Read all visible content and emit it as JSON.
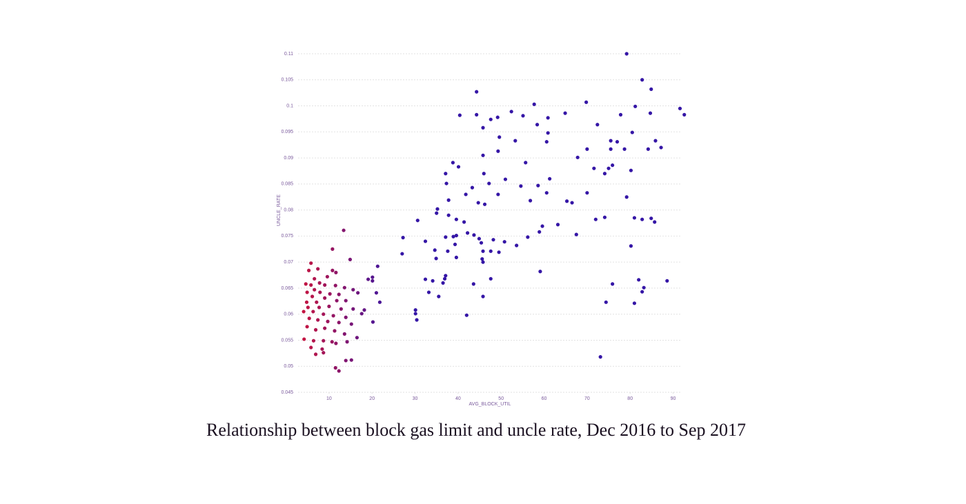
{
  "chart_data": {
    "type": "scatter",
    "caption": "Relationship between block gas limit and uncle rate, Dec 2016 to Sep 2017",
    "xlabel": "AVG_BLOCK_UTIL",
    "ylabel": "UNCLE_RATE",
    "xlim": [
      2.8,
      92
    ],
    "ylim": [
      0.045,
      0.11
    ],
    "xticks": [
      10,
      20,
      30,
      40,
      50,
      60,
      70,
      80,
      90
    ],
    "yticks": [
      0.045,
      0.05,
      0.055,
      0.06,
      0.065,
      0.07,
      0.075,
      0.08,
      0.085,
      0.09,
      0.095,
      0.1,
      0.105,
      0.11
    ],
    "grid": true,
    "colors": [
      "#cc153c",
      "#3516a6"
    ],
    "x": [
      79.2,
      82.8,
      84.9,
      44.3,
      57.7,
      69.8,
      81.2,
      91.6,
      92.6,
      40.4,
      44.3,
      49.2,
      52.4,
      55.1,
      64.9,
      60.9,
      47.6,
      84.7,
      77.8,
      45.8,
      58.4,
      72.4,
      80.5,
      60.9,
      49.6,
      53.3,
      60.6,
      75.5,
      77.0,
      85.9,
      70.0,
      49.3,
      78.7,
      84.2,
      87.2,
      45.8,
      67.8,
      75.5,
      38.8,
      55.7,
      40.1,
      71.6,
      75.9,
      75.0,
      80.2,
      37.1,
      74.1,
      46.0,
      51.0,
      61.3,
      47.2,
      54.6,
      58.6,
      37.3,
      43.3,
      49.3,
      41.8,
      60.6,
      70.0,
      79.2,
      44.7,
      46.2,
      56.8,
      65.3,
      66.5,
      37.8,
      35.2,
      37.8,
      35.0,
      39.6,
      41.4,
      30.6,
      72.0,
      74.1,
      81.0,
      82.8,
      84.9,
      85.7,
      59.6,
      63.2,
      58.9,
      67.5,
      37.1,
      38.9,
      39.6,
      42.2,
      43.7,
      44.9,
      48.2,
      56.2,
      27.2,
      32.4,
      50.8,
      45.4,
      39.3,
      53.6,
      80.2,
      34.6,
      37.6,
      27.0,
      45.8,
      47.6,
      49.5,
      34.9,
      45.6,
      39.6,
      45.8,
      59.1,
      37.1,
      32.4,
      34.1,
      36.9,
      47.6,
      36.5,
      43.6,
      75.9,
      82.0,
      88.6,
      83.2,
      82.8,
      33.2,
      35.5,
      45.8,
      74.4,
      81.0,
      30.1,
      30.1,
      42.0,
      30.4,
      73.1,
      13.4,
      10.8,
      14.9,
      21.3,
      5.8,
      7.4,
      10.8,
      11.6,
      5.3,
      9.6,
      6.6,
      19.1,
      20.1,
      20.1,
      4.6,
      5.8,
      7.8,
      9.0,
      11.5,
      13.6,
      15.6,
      6.6,
      4.9,
      7.9,
      10.2,
      12.3,
      16.7,
      21.0,
      21.8,
      6.1,
      9.0,
      11.8,
      13.9,
      4.8,
      7.1,
      5.1,
      7.7,
      10.0,
      12.8,
      15.6,
      18.2,
      6.3,
      4.1,
      8.7,
      11.0,
      13.9,
      17.6,
      20.2,
      5.4,
      7.4,
      9.7,
      12.3,
      15.2,
      4.9,
      6.9,
      9.0,
      11.3,
      13.6,
      16.5,
      4.2,
      6.4,
      8.7,
      10.7,
      14.2,
      5.8,
      8.4,
      11.6,
      6.9,
      8.7,
      13.9,
      15.2,
      11.5,
      12.3
    ],
    "values": [
      0.11,
      0.105,
      0.1032,
      0.1027,
      0.1003,
      0.1007,
      0.0999,
      0.0995,
      0.0983,
      0.0982,
      0.0983,
      0.0978,
      0.0989,
      0.0981,
      0.0986,
      0.0977,
      0.0974,
      0.0986,
      0.0983,
      0.0958,
      0.0964,
      0.0964,
      0.0949,
      0.0948,
      0.094,
      0.0933,
      0.0931,
      0.0933,
      0.0931,
      0.0933,
      0.0917,
      0.0913,
      0.0917,
      0.0917,
      0.092,
      0.0905,
      0.0901,
      0.0917,
      0.0891,
      0.0891,
      0.0883,
      0.088,
      0.0886,
      0.088,
      0.0876,
      0.087,
      0.087,
      0.087,
      0.0859,
      0.086,
      0.0851,
      0.0846,
      0.0847,
      0.0851,
      0.0843,
      0.083,
      0.083,
      0.0833,
      0.0833,
      0.0825,
      0.0814,
      0.0811,
      0.0818,
      0.0817,
      0.0814,
      0.0819,
      0.0802,
      0.079,
      0.0794,
      0.0782,
      0.0777,
      0.078,
      0.0782,
      0.0786,
      0.0785,
      0.0782,
      0.0784,
      0.0777,
      0.0769,
      0.0772,
      0.0758,
      0.0753,
      0.0748,
      0.0749,
      0.0751,
      0.0756,
      0.0752,
      0.0745,
      0.0743,
      0.0748,
      0.0747,
      0.074,
      0.0739,
      0.0737,
      0.0734,
      0.0732,
      0.0731,
      0.0723,
      0.0721,
      0.0716,
      0.0721,
      0.0721,
      0.0719,
      0.0707,
      0.0706,
      0.0709,
      0.07,
      0.0682,
      0.0674,
      0.0667,
      0.0664,
      0.0668,
      0.0668,
      0.066,
      0.0658,
      0.0658,
      0.0666,
      0.0664,
      0.0651,
      0.0643,
      0.0642,
      0.0634,
      0.0634,
      0.0623,
      0.0621,
      0.0608,
      0.0601,
      0.0598,
      0.0589,
      0.0518,
      0.0761,
      0.0725,
      0.0705,
      0.0692,
      0.0698,
      0.0687,
      0.0684,
      0.068,
      0.0684,
      0.0672,
      0.0668,
      0.0667,
      0.0664,
      0.0671,
      0.0658,
      0.0656,
      0.066,
      0.0656,
      0.0655,
      0.0651,
      0.0647,
      0.0647,
      0.0642,
      0.0642,
      0.0639,
      0.0638,
      0.0641,
      0.0641,
      0.0623,
      0.0634,
      0.0631,
      0.0626,
      0.0626,
      0.0623,
      0.0623,
      0.0613,
      0.0613,
      0.0615,
      0.061,
      0.061,
      0.0608,
      0.0605,
      0.0605,
      0.06,
      0.0597,
      0.0594,
      0.0601,
      0.0585,
      0.0592,
      0.0589,
      0.0586,
      0.0584,
      0.0581,
      0.0576,
      0.057,
      0.0573,
      0.0568,
      0.0562,
      0.0555,
      0.0552,
      0.0549,
      0.0549,
      0.0547,
      0.0547,
      0.0536,
      0.0533,
      0.0544,
      0.0523,
      0.0526,
      0.0511,
      0.0512,
      0.0497,
      0.0491
    ]
  }
}
